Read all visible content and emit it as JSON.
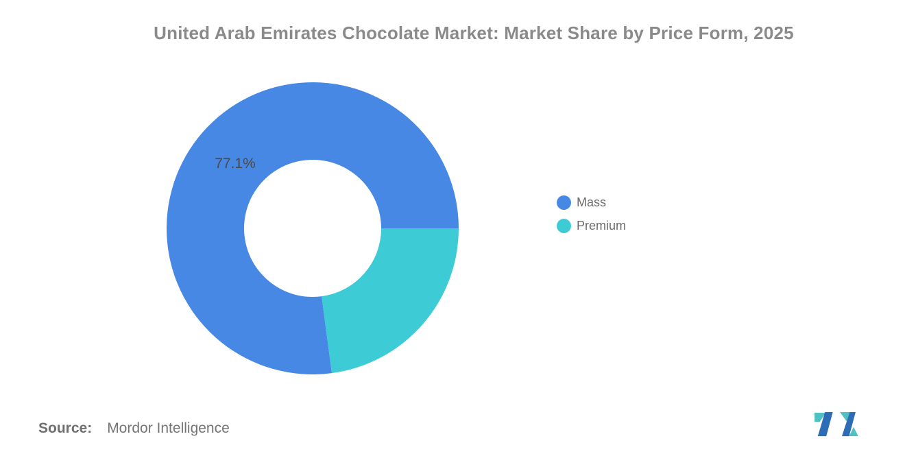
{
  "chart_data": {
    "type": "pie",
    "variant": "donut",
    "title": "United Arab Emirates Chocolate Market: Market Share by Price Form, 2025",
    "slices": [
      {
        "name": "Mass",
        "value": 77.1,
        "label": "77.1%",
        "color": "#4688E3"
      },
      {
        "name": "Premium",
        "value": 22.9,
        "label": "",
        "color": "#3DCBD6"
      }
    ],
    "start_angle_deg": 0,
    "direction": "counterclockwise",
    "inner_radius_ratio": 0.47,
    "legend_position": "right",
    "grid": "off"
  },
  "footer": {
    "source_label": "Source:",
    "source_text": "Mordor Intelligence"
  },
  "logo": {
    "name": "mordor-intelligence-logo",
    "teal": "#4FC1C3",
    "blue": "#2D6DB5"
  },
  "colors": {
    "title_text": "#8A8A8A",
    "slice_label_text": "#4A4A4A",
    "legend_text": "#6B6B6B",
    "source_text": "#6E6E6E",
    "background": "#FFFFFF"
  }
}
